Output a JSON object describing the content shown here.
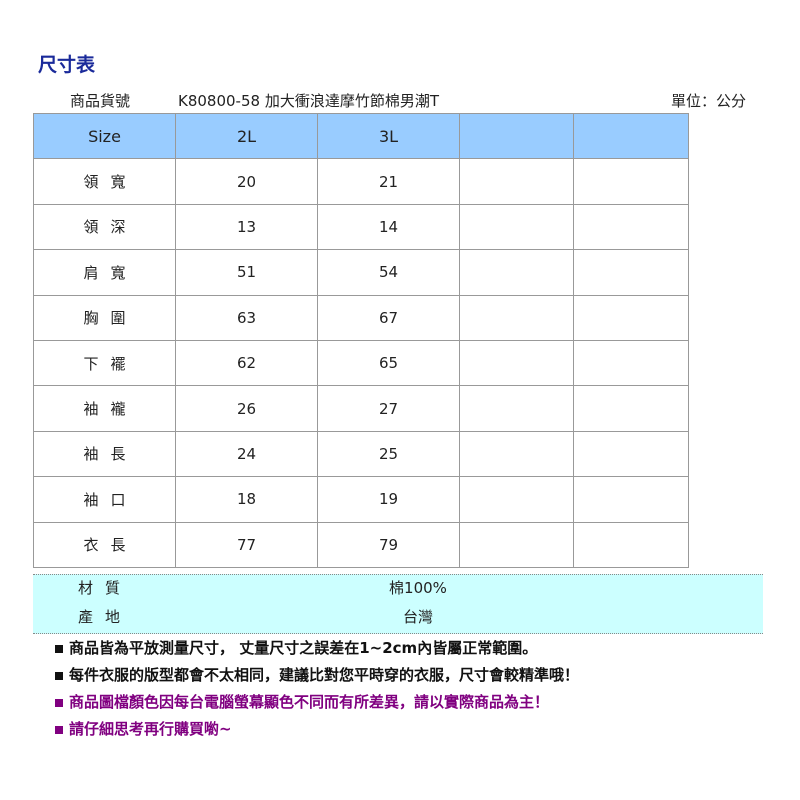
{
  "title": "尺寸表",
  "product": {
    "code_label": "商品貨號",
    "name": "K80800-58 加大衝浪達摩竹節棉男潮T",
    "unit": "單位：公分"
  },
  "table": {
    "headers": [
      "Size",
      "2L",
      "3L",
      "",
      ""
    ],
    "rows": [
      {
        "label": "領寬",
        "values": [
          "20",
          "21",
          "",
          ""
        ]
      },
      {
        "label": "領深",
        "values": [
          "13",
          "14",
          "",
          ""
        ]
      },
      {
        "label": "肩寬",
        "values": [
          "51",
          "54",
          "",
          ""
        ]
      },
      {
        "label": "胸圍",
        "values": [
          "63",
          "67",
          "",
          ""
        ]
      },
      {
        "label": "下襬",
        "values": [
          "62",
          "65",
          "",
          ""
        ]
      },
      {
        "label": "袖襱",
        "values": [
          "26",
          "27",
          "",
          ""
        ]
      },
      {
        "label": "袖長",
        "values": [
          "24",
          "25",
          "",
          ""
        ]
      },
      {
        "label": "袖口",
        "values": [
          "18",
          "19",
          "",
          ""
        ]
      },
      {
        "label": "衣長",
        "values": [
          "77",
          "79",
          "",
          ""
        ]
      }
    ]
  },
  "specs": [
    {
      "label": "材質",
      "value": "棉100%"
    },
    {
      "label": "產地",
      "value": "台灣"
    }
  ],
  "notes": [
    {
      "text": "商品皆為平放測量尺寸， 丈量尺寸之誤差在1~2cm內皆屬正常範圍。",
      "color": "#111111"
    },
    {
      "text": "每件衣服的版型都會不太相同，建議比對您平時穿的衣服，尺寸會較精準哦！",
      "color": "#111111"
    },
    {
      "text": "商品圖檔顏色因每台電腦螢幕顯色不同而有所差異，請以實際商品為主！",
      "color": "#800080"
    },
    {
      "text": "請仔細思考再行購買喲~",
      "color": "#800080"
    }
  ]
}
